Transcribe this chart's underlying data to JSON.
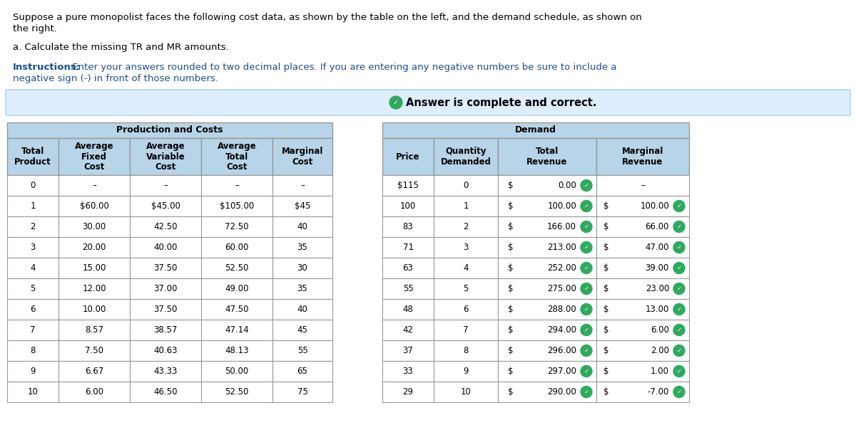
{
  "title_text1": "Suppose a pure monopolist faces the following cost data, as shown by the table on the left, and the demand schedule, as shown on",
  "title_text2": "the right.",
  "subtitle_text": "a. Calculate the missing TR and MR amounts.",
  "instructions_bold": "Instructions:",
  "instructions_text1": " Enter your answers rounded to two decimal places. If you are entering any negative numbers be sure to include a",
  "instructions_text2": "negative sign (-) in front of those numbers.",
  "answer_text": "Answer is complete and correct.",
  "answer_banner_color": "#ddeeff",
  "answer_banner_border": "#aaccee",
  "table_header_color": "#b8d4e8",
  "table_border_color": "#999999",
  "table_bg_color": "#ffffff",
  "prod_table_title": "Production and Costs",
  "demand_table_title": "Demand",
  "prod_headers": [
    "Total\nProduct",
    "Average\nFixed\nCost",
    "Average\nVariable\nCost",
    "Average\nTotal\nCost",
    "Marginal\nCost"
  ],
  "demand_headers": [
    "Price",
    "Quantity\nDemanded",
    "Total\nRevenue",
    "Marginal\nRevenue"
  ],
  "prod_data": [
    [
      "0",
      "–",
      "–",
      "–",
      "–"
    ],
    [
      "1",
      "$60.00",
      "$45.00",
      "$105.00",
      "$45"
    ],
    [
      "2",
      "30.00",
      "42.50",
      "72.50",
      "40"
    ],
    [
      "3",
      "20.00",
      "40.00",
      "60.00",
      "35"
    ],
    [
      "4",
      "15.00",
      "37.50",
      "52.50",
      "30"
    ],
    [
      "5",
      "12.00",
      "37.00",
      "49.00",
      "35"
    ],
    [
      "6",
      "10.00",
      "37.50",
      "47.50",
      "40"
    ],
    [
      "7",
      "8.57",
      "38.57",
      "47.14",
      "45"
    ],
    [
      "8",
      "7.50",
      "40.63",
      "48.13",
      "55"
    ],
    [
      "9",
      "6.67",
      "43.33",
      "50.00",
      "65"
    ],
    [
      "10",
      "6.00",
      "46.50",
      "52.50",
      "75"
    ]
  ],
  "demand_data": [
    [
      "$115",
      "0",
      "0.00",
      "–"
    ],
    [
      "100",
      "1",
      "100.00",
      "100.00"
    ],
    [
      "83",
      "2",
      "166.00",
      "66.00"
    ],
    [
      "71",
      "3",
      "213.00",
      "47.00"
    ],
    [
      "63",
      "4",
      "252.00",
      "39.00"
    ],
    [
      "55",
      "5",
      "275.00",
      "23.00"
    ],
    [
      "48",
      "6",
      "288.00",
      "13.00"
    ],
    [
      "42",
      "7",
      "294.00",
      "6.00"
    ],
    [
      "37",
      "8",
      "296.00",
      "2.00"
    ],
    [
      "33",
      "9",
      "297.00",
      "1.00"
    ],
    [
      "29",
      "10",
      "290.00",
      "-7.00"
    ]
  ],
  "checkmark_color": "#2eaa5e",
  "instructions_color": "#1a4f8a",
  "font_size": 9.5,
  "table_font_size": 8.5
}
